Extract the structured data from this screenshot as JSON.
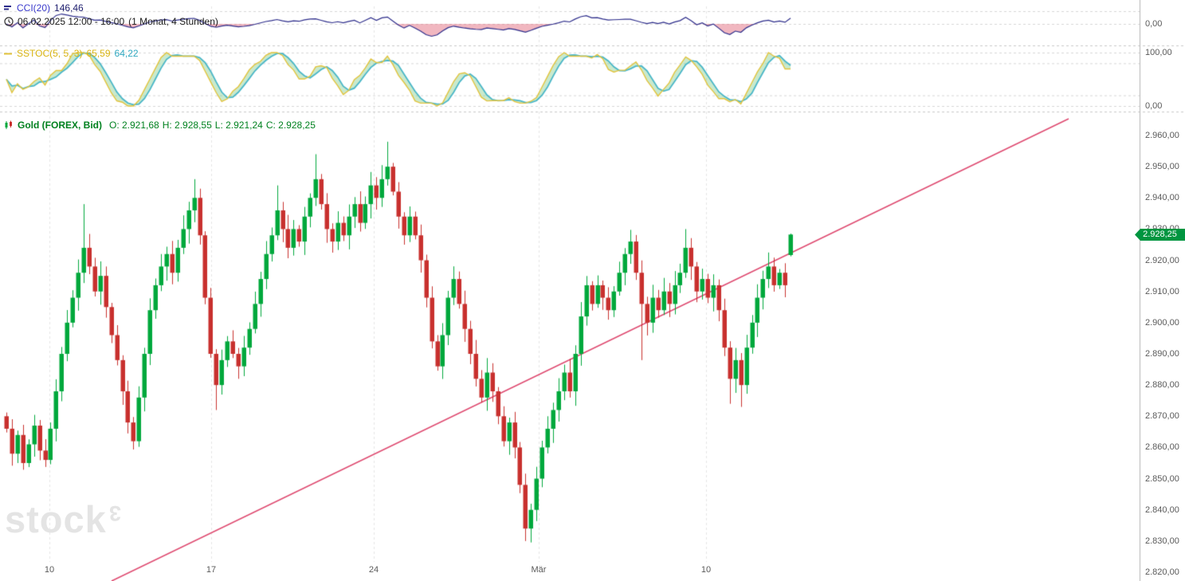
{
  "panels": {
    "cci": {
      "label": "CCI(20)",
      "value": "146,46",
      "datetime": "06.02.2025 12:00 - 16:00",
      "period": "(1 Monat, 4 Stunden)",
      "axis_zero": "0,00",
      "line_color": "#2c2c8a",
      "negative_fill": "rgba(225,95,115,0.45)"
    },
    "sstoc": {
      "label": "SSTOC(5, 5, 3)",
      "value_k": "65,59",
      "value_d": "64,22",
      "axis_max": "100,00",
      "axis_min": "0,00",
      "color_k": "#e2c33c",
      "color_d": "#49b6c8",
      "fill": "rgba(120,200,130,0.4)"
    },
    "main": {
      "instrument": "Gold (FOREX, Bid)",
      "ohlc": [
        {
          "label": "O:",
          "value": "2.921,68"
        },
        {
          "label": "H:",
          "value": "2.928,55"
        },
        {
          "label": "L:",
          "value": "2.921,24"
        },
        {
          "label": "C:",
          "value": "2.928,25"
        }
      ],
      "price_badge": "2.928,25",
      "badge_color": "#009540",
      "watermark": "stock",
      "watermark_sup": "3"
    }
  },
  "axes": {
    "y_labels": [
      "2.960,00",
      "2.950,00",
      "2.940,00",
      "2.930,00",
      "2.920,00",
      "2.910,00",
      "2.900,00",
      "2.890,00",
      "2.880,00",
      "2.870,00",
      "2.860,00",
      "2.850,00",
      "2.840,00",
      "2.830,00",
      "2.820,00"
    ],
    "x_ticks": [
      {
        "label": "10",
        "x": 62
      },
      {
        "label": "17",
        "x": 265
      },
      {
        "label": "24",
        "x": 469
      },
      {
        "label": "Mär",
        "x": 676
      },
      {
        "label": "10",
        "x": 886
      }
    ]
  },
  "chart_data": {
    "type": "candlestick",
    "instrument": "Gold (FOREX, Bid)",
    "interval": "4 Stunden",
    "range": "1 Monat",
    "ylim": [
      2820,
      2960
    ],
    "closes": [
      2866,
      2858,
      2864,
      2855,
      2861,
      2867,
      2859,
      2856,
      2866,
      2878,
      2890,
      2900,
      2908,
      2916,
      2924,
      2918,
      2910,
      2915,
      2905,
      2896,
      2888,
      2878,
      2868,
      2862,
      2876,
      2890,
      2904,
      2912,
      2918,
      2922,
      2916,
      2924,
      2930,
      2936,
      2940,
      2928,
      2908,
      2890,
      2880,
      2888,
      2894,
      2890,
      2886,
      2892,
      2898,
      2906,
      2914,
      2922,
      2928,
      2936,
      2930,
      2924,
      2930,
      2926,
      2934,
      2940,
      2946,
      2938,
      2930,
      2926,
      2932,
      2928,
      2934,
      2938,
      2932,
      2938,
      2944,
      2940,
      2946,
      2950,
      2942,
      2934,
      2928,
      2934,
      2928,
      2920,
      2908,
      2894,
      2886,
      2896,
      2908,
      2914,
      2906,
      2898,
      2890,
      2882,
      2876,
      2884,
      2878,
      2870,
      2862,
      2868,
      2860,
      2848,
      2834,
      2840,
      2850,
      2860,
      2866,
      2872,
      2878,
      2884,
      2878,
      2890,
      2902,
      2912,
      2906,
      2912,
      2908,
      2904,
      2910,
      2916,
      2922,
      2926,
      2916,
      2906,
      2900,
      2908,
      2904,
      2910,
      2906,
      2912,
      2916,
      2924,
      2918,
      2910,
      2914,
      2908,
      2912,
      2904,
      2892,
      2882,
      2888,
      2880,
      2892,
      2900,
      2908,
      2914,
      2918,
      2912,
      2916,
      2912,
      2928.25
    ],
    "wick_highs": {
      "14": 2938,
      "34": 2946,
      "49": 2944,
      "56": 2954,
      "69": 2958,
      "123": 2930
    },
    "wick_lows": {
      "38": 2872,
      "94": 2830,
      "115": 2888,
      "131": 2874,
      "133": 2873
    },
    "last_candle": {
      "o": 2921.68,
      "h": 2928.55,
      "l": 2921.24,
      "c": 2928.25
    },
    "indicators": [
      {
        "name": "CCI",
        "params": [
          20
        ],
        "current": 146.46
      },
      {
        "name": "SSTOC",
        "params": [
          5,
          5,
          3
        ],
        "current": [
          65.59,
          64.22
        ]
      }
    ],
    "trendline": {
      "x1": 140,
      "y1": 729,
      "x2": 1341,
      "y2": 149,
      "color": "#de4a70"
    },
    "colors": {
      "up": "#00a83c",
      "down": "#c8302e"
    }
  }
}
